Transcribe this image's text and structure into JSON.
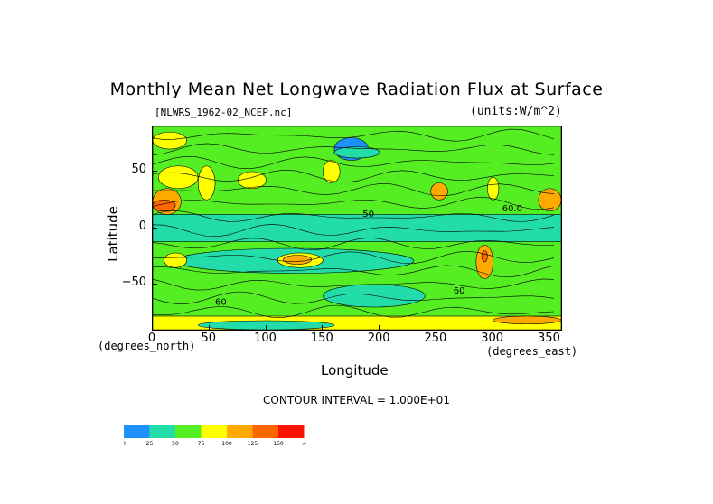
{
  "chart_data": {
    "type": "heatmap",
    "title": "Monthly Mean Net Longwave Radiation Flux at Surface",
    "subtitle": "[NLWRS_1962-02_NCEP.nc]",
    "units": "(units:W/m^2)",
    "xlabel": "Longitude",
    "ylabel": "Latitude",
    "x_unit_label": "(degrees_east)",
    "y_unit_label": "(degrees_north)",
    "xlim": [
      0,
      360
    ],
    "ylim": [
      -90,
      90
    ],
    "x_ticks": [
      0,
      50,
      100,
      150,
      200,
      250,
      300,
      350
    ],
    "y_ticks": [
      50,
      0,
      -50
    ],
    "x_tick_labels": [
      "0",
      "50",
      "100",
      "150",
      "200",
      "250",
      "300",
      "350"
    ],
    "y_tick_labels": [
      "50",
      "0",
      "−50"
    ],
    "contour_interval": "CONTOUR INTERVAL = 1.000E+01",
    "contour_labels": [
      "50",
      "60.0",
      "60",
      "60"
    ],
    "colorbar": {
      "levels": [
        "0",
        "25",
        "50",
        "75",
        "100",
        "125",
        "150",
        "∞"
      ],
      "colors": [
        "#1e90ff",
        "#22ddaa",
        "#55ee22",
        "#ffff00",
        "#ffaa00",
        "#ff6600",
        "#ff1100"
      ]
    },
    "regions": [
      {
        "lon": [
          0,
          360
        ],
        "lat": [
          -90,
          90
        ],
        "level": 2
      },
      {
        "lon": [
          0,
          360
        ],
        "lat": [
          -12,
          12
        ],
        "level": 1
      },
      {
        "lon": [
          20,
          230
        ],
        "lat": [
          -40,
          -18
        ],
        "level": 1
      },
      {
        "lon": [
          150,
          240
        ],
        "lat": [
          -70,
          -50
        ],
        "level": 1
      },
      {
        "lon": [
          160,
          190
        ],
        "lat": [
          60,
          80
        ],
        "level": 0
      },
      {
        "lon": [
          160,
          200
        ],
        "lat": [
          62,
          72
        ],
        "level": 1
      },
      {
        "lon": [
          0,
          25
        ],
        "lat": [
          12,
          35
        ],
        "level": 4
      },
      {
        "lon": [
          0,
          20
        ],
        "lat": [
          15,
          25
        ],
        "level": 5
      },
      {
        "lon": [
          5,
          40
        ],
        "lat": [
          35,
          55
        ],
        "level": 3
      },
      {
        "lon": [
          40,
          55
        ],
        "lat": [
          25,
          55
        ],
        "level": 3
      },
      {
        "lon": [
          75,
          100
        ],
        "lat": [
          35,
          50
        ],
        "level": 3
      },
      {
        "lon": [
          150,
          165
        ],
        "lat": [
          40,
          60
        ],
        "level": 3
      },
      {
        "lon": [
          245,
          260
        ],
        "lat": [
          25,
          40
        ],
        "level": 4
      },
      {
        "lon": [
          295,
          305
        ],
        "lat": [
          25,
          45
        ],
        "level": 3
      },
      {
        "lon": [
          340,
          360
        ],
        "lat": [
          15,
          35
        ],
        "level": 4
      },
      {
        "lon": [
          0,
          30
        ],
        "lat": [
          70,
          85
        ],
        "level": 3
      },
      {
        "lon": [
          110,
          150
        ],
        "lat": [
          -35,
          -22
        ],
        "level": 3
      },
      {
        "lon": [
          115,
          140
        ],
        "lat": [
          -32,
          -24
        ],
        "level": 4
      },
      {
        "lon": [
          10,
          30
        ],
        "lat": [
          -35,
          -22
        ],
        "level": 3
      },
      {
        "lon": [
          285,
          300
        ],
        "lat": [
          -45,
          -15
        ],
        "level": 4
      },
      {
        "lon": [
          290,
          295
        ],
        "lat": [
          -30,
          -20
        ],
        "level": 5
      },
      {
        "lon": [
          0,
          360
        ],
        "lat": [
          -90,
          -78
        ],
        "level": 3
      },
      {
        "lon": [
          40,
          160
        ],
        "lat": [
          -90,
          -82
        ],
        "level": 1
      },
      {
        "lon": [
          300,
          360
        ],
        "lat": [
          -85,
          -78
        ],
        "level": 4
      }
    ]
  }
}
